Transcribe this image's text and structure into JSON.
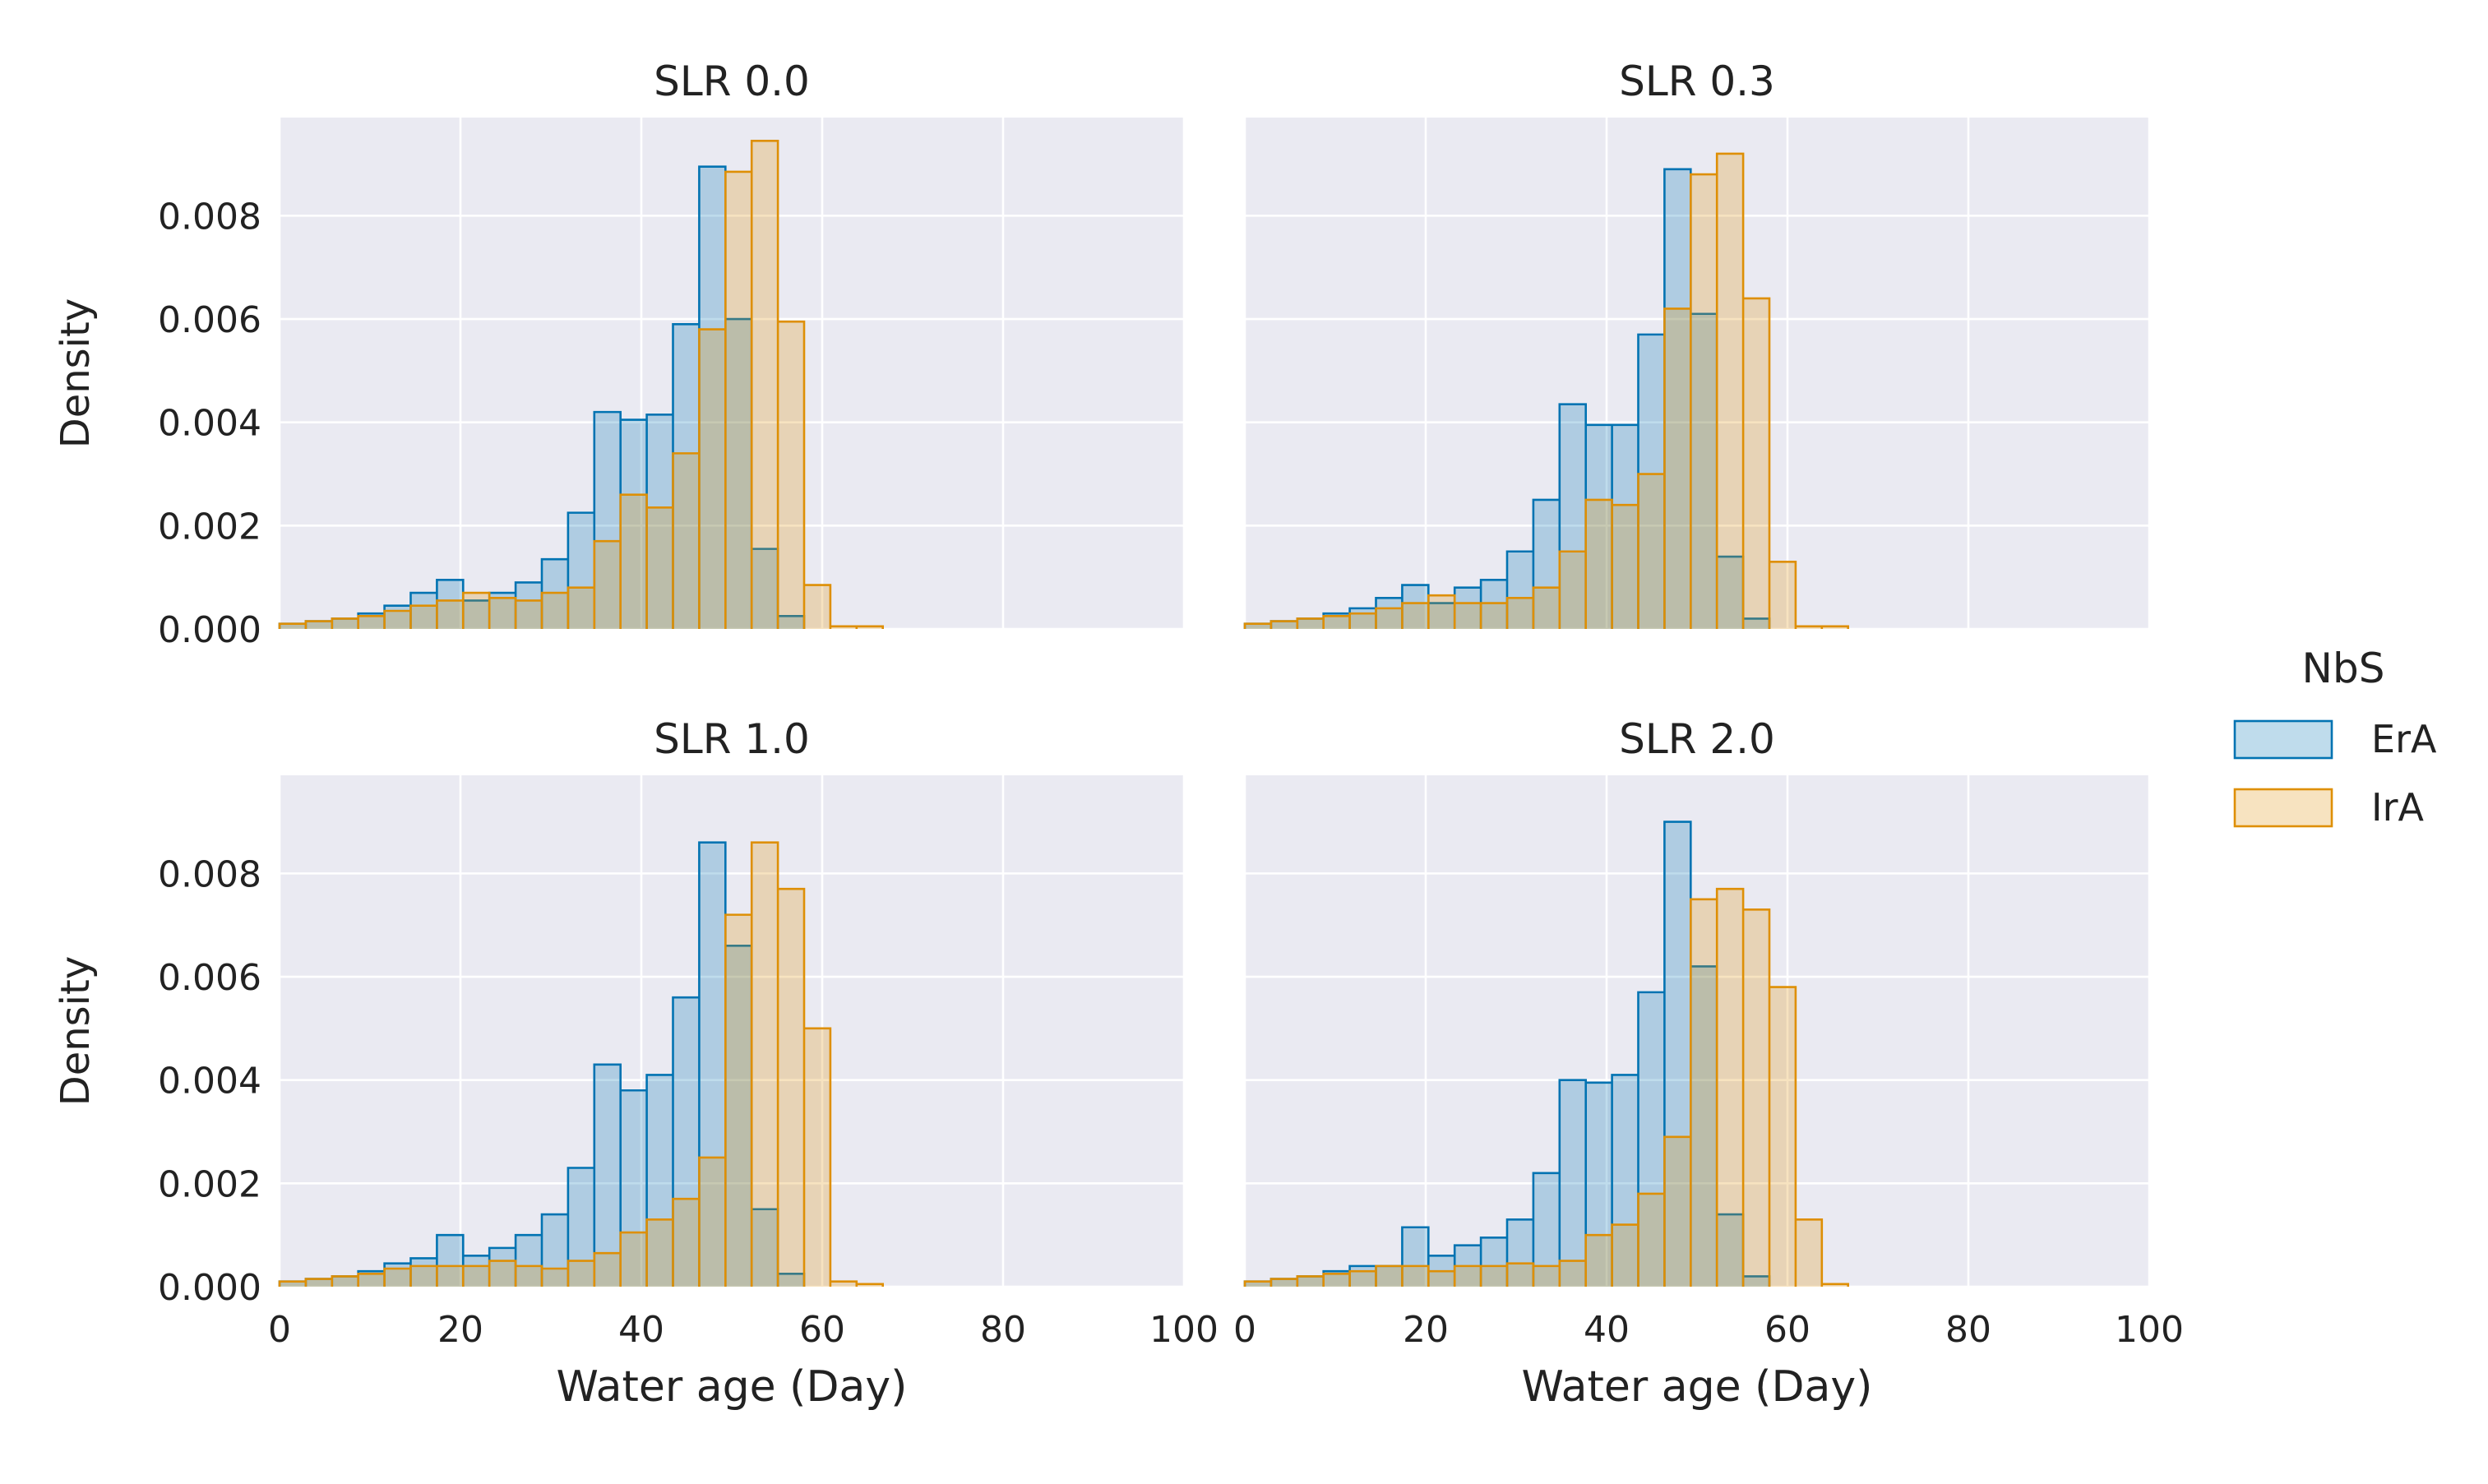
{
  "legend": {
    "title": "NbS",
    "entries": [
      {
        "name": "ErA",
        "color": "#0173b2"
      },
      {
        "name": "IrA",
        "color": "#de8f05"
      }
    ],
    "placement": "right"
  },
  "chart_data": {
    "type": "histogram",
    "facet_layout": "2x2",
    "xlabel": "Water age (Day)",
    "ylabel": "Density",
    "xlim": [
      0,
      100
    ],
    "ylim": [
      0,
      0.0099
    ],
    "x_ticks": [
      0,
      20,
      40,
      60,
      80,
      100
    ],
    "y_ticks": [
      0.0,
      0.002,
      0.004,
      0.006,
      0.008
    ],
    "y_tick_labels": [
      "0.000",
      "0.002",
      "0.004",
      "0.006",
      "0.008"
    ],
    "grid": true,
    "bin_start": 0,
    "bin_width": 2.9,
    "panels": [
      {
        "title": "SLR 0.0",
        "series": [
          {
            "name": "ErA",
            "values": [
              0.0001,
              0.00015,
              0.0002,
              0.0003,
              0.00045,
              0.0007,
              0.00095,
              0.00055,
              0.0007,
              0.0009,
              0.00135,
              0.00225,
              0.0042,
              0.00405,
              0.00415,
              0.0059,
              0.00895,
              0.006,
              0.00155,
              0.00025,
              0,
              0,
              0,
              0,
              0,
              0,
              0,
              0,
              0,
              0,
              0,
              0,
              0,
              0
            ]
          },
          {
            "name": "IrA",
            "values": [
              0.0001,
              0.00015,
              0.0002,
              0.00025,
              0.00035,
              0.00045,
              0.00055,
              0.0007,
              0.0006,
              0.00055,
              0.0007,
              0.0008,
              0.0017,
              0.0026,
              0.00235,
              0.0034,
              0.0058,
              0.00885,
              0.00945,
              0.00595,
              0.00085,
              5e-05,
              5e-05,
              0,
              0,
              0,
              0,
              0,
              0,
              0,
              0,
              0,
              0,
              0
            ]
          }
        ]
      },
      {
        "title": "SLR 0.3",
        "series": [
          {
            "name": "ErA",
            "values": [
              0.0001,
              0.00015,
              0.0002,
              0.0003,
              0.0004,
              0.0006,
              0.00085,
              0.0005,
              0.0008,
              0.00095,
              0.0015,
              0.0025,
              0.00435,
              0.00395,
              0.00395,
              0.0057,
              0.0089,
              0.0061,
              0.0014,
              0.0002,
              0,
              0,
              0,
              0,
              0,
              0,
              0,
              0,
              0,
              0,
              0,
              0,
              0,
              0
            ]
          },
          {
            "name": "IrA",
            "values": [
              0.0001,
              0.00015,
              0.0002,
              0.00025,
              0.0003,
              0.0004,
              0.0005,
              0.00065,
              0.0005,
              0.0005,
              0.0006,
              0.0008,
              0.0015,
              0.0025,
              0.0024,
              0.003,
              0.0062,
              0.0088,
              0.0092,
              0.0064,
              0.0013,
              5e-05,
              5e-05,
              0,
              0,
              0,
              0,
              0,
              0,
              0,
              0,
              0,
              0,
              0
            ]
          }
        ]
      },
      {
        "title": "SLR 1.0",
        "series": [
          {
            "name": "ErA",
            "values": [
              0.0001,
              0.00015,
              0.0002,
              0.0003,
              0.00045,
              0.00055,
              0.001,
              0.0006,
              0.00075,
              0.001,
              0.0014,
              0.0023,
              0.0043,
              0.0038,
              0.0041,
              0.0056,
              0.0086,
              0.0066,
              0.0015,
              0.00025,
              0,
              0,
              0,
              0,
              0,
              0,
              0,
              0,
              0,
              0,
              0,
              0,
              0,
              0
            ]
          },
          {
            "name": "IrA",
            "values": [
              0.0001,
              0.00015,
              0.0002,
              0.00025,
              0.00035,
              0.0004,
              0.0004,
              0.0004,
              0.0005,
              0.0004,
              0.00035,
              0.0005,
              0.00065,
              0.00105,
              0.0013,
              0.0017,
              0.0025,
              0.0072,
              0.0086,
              0.0077,
              0.005,
              0.0001,
              5e-05,
              0,
              0,
              0,
              0,
              0,
              0,
              0,
              0,
              0,
              0,
              0
            ]
          }
        ]
      },
      {
        "title": "SLR 2.0",
        "series": [
          {
            "name": "ErA",
            "values": [
              0.0001,
              0.00015,
              0.0002,
              0.0003,
              0.0004,
              0.0004,
              0.00115,
              0.0006,
              0.0008,
              0.00095,
              0.0013,
              0.0022,
              0.004,
              0.00395,
              0.0041,
              0.0057,
              0.009,
              0.0062,
              0.0014,
              0.0002,
              0,
              0,
              0,
              0,
              0,
              0,
              0,
              0,
              0,
              0,
              0,
              0,
              0,
              0
            ]
          },
          {
            "name": "IrA",
            "values": [
              0.0001,
              0.00015,
              0.0002,
              0.00025,
              0.0003,
              0.0004,
              0.0004,
              0.0003,
              0.0004,
              0.0004,
              0.00045,
              0.0004,
              0.0005,
              0.001,
              0.0012,
              0.0018,
              0.0029,
              0.0075,
              0.0077,
              0.0073,
              0.0058,
              0.0013,
              5e-05,
              0,
              0,
              0,
              0,
              0,
              0,
              0,
              0,
              0,
              0,
              0
            ]
          }
        ]
      }
    ]
  }
}
